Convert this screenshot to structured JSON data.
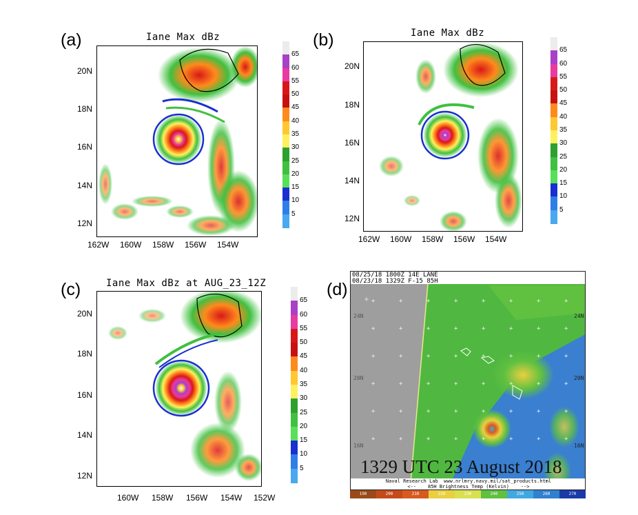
{
  "panels": [
    {
      "letter": "(a)",
      "title": "Iane Max dBz",
      "lat_ticks": [
        "20N",
        "18N",
        "16N",
        "14N",
        "12N"
      ],
      "lon_ticks": [
        "162W",
        "160W",
        "158W",
        "156W",
        "154W"
      ]
    },
    {
      "letter": "(b)",
      "title": "Iane Max dBz",
      "lat_ticks": [
        "20N",
        "18N",
        "16N",
        "14N",
        "12N"
      ],
      "lon_ticks": [
        "162W",
        "160W",
        "158W",
        "156W",
        "154W"
      ]
    },
    {
      "letter": "(c)",
      "title": "Iane Max dBz at AUG_23_12Z",
      "lat_ticks": [
        "20N",
        "18N",
        "16N",
        "14N",
        "12N"
      ],
      "lon_ticks": [
        "160W",
        "158W",
        "156W",
        "154W",
        "152W"
      ]
    }
  ],
  "colorbar": {
    "labels": [
      "65",
      "60",
      "55",
      "50",
      "45",
      "40",
      "35",
      "30",
      "25",
      "20",
      "15",
      "10",
      "5"
    ],
    "colors": [
      "#ececec",
      "#a940c8",
      "#e83aa0",
      "#d81818",
      "#c81010",
      "#ff8a1c",
      "#ffc830",
      "#fff060",
      "#2ea02e",
      "#40c040",
      "#58e058",
      "#1a2fcf",
      "#2f7ee8",
      "#48a8f0"
    ]
  },
  "satellite": {
    "letter": "(d)",
    "header_line1": "08/25/18 1800Z 14E LANE",
    "header_line2": "08/23/18 1329Z F-15 85H",
    "lat_left_top": "24N",
    "lat_left_mid": "20N",
    "lat_left_bot": "16N",
    "lat_right_top": "24N",
    "lat_right_mid": "20N",
    "lat_right_bot": "16N",
    "timestamp": "1329 UTC 23 August 2018",
    "footer_line1": "Naval Research Lab  www.nrlmry.navy.mil/sat_products.html",
    "footer_line2": "<--    85H Brightness Temp (Kelvin)    -->",
    "scale_labels": [
      "190",
      "200",
      "210",
      "220",
      "230",
      "240",
      "250",
      "260",
      "270"
    ],
    "scale_colors": [
      "#9a4a1a",
      "#c44a1a",
      "#d85a20",
      "#e8d040",
      "#d8e050",
      "#60c040",
      "#40a8e0",
      "#3080d0",
      "#1a3aa8"
    ]
  }
}
